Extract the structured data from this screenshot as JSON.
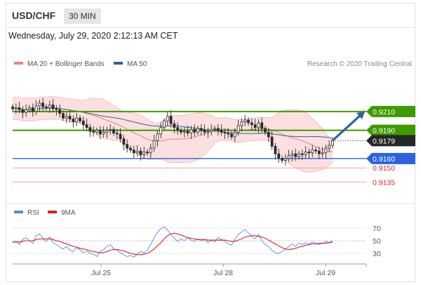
{
  "header": {
    "symbol": "USD/CHF",
    "timeframe": "30 MIN",
    "datetime": "Wednesday, July 29, 2020 2:12:13 AM CET"
  },
  "legend": {
    "items": [
      {
        "label": "MA 20 + Bollinger Bands",
        "color": "#f08080"
      },
      {
        "label": "MA 50",
        "color": "#2f5f9e"
      }
    ],
    "credit": "Research © 2020 Trading Central"
  },
  "chart_data": [
    {
      "type": "candlestick",
      "panel": "price",
      "x_ticks": [
        "Jul 25",
        "Jul 28",
        "Jul 29"
      ],
      "ylim": [
        0.9127,
        0.9245
      ],
      "close_series": [
        0.9213,
        0.9214,
        0.9212,
        0.9209,
        0.9212,
        0.9214,
        0.921,
        0.9216,
        0.9219,
        0.9215,
        0.9214,
        0.9217,
        0.9213,
        0.9212,
        0.9208,
        0.9203,
        0.9205,
        0.9202,
        0.9199,
        0.9203,
        0.92,
        0.9196,
        0.9193,
        0.9189,
        0.9188,
        0.919,
        0.9186,
        0.9188,
        0.919,
        0.9191,
        0.9187,
        0.9186,
        0.9181,
        0.9175,
        0.9171,
        0.9169,
        0.9166,
        0.9168,
        0.9164,
        0.9167,
        0.9166,
        0.9171,
        0.9179,
        0.9186,
        0.9193,
        0.92,
        0.9205,
        0.9197,
        0.9193,
        0.919,
        0.9188,
        0.9189,
        0.9187,
        0.9191,
        0.9188,
        0.9192,
        0.919,
        0.9188,
        0.9189,
        0.9191,
        0.9192,
        0.919,
        0.9188,
        0.9187,
        0.9186,
        0.9183,
        0.9188,
        0.9195,
        0.9199,
        0.9201,
        0.9198,
        0.9196,
        0.9193,
        0.9198,
        0.9192,
        0.9188,
        0.9183,
        0.9173,
        0.9165,
        0.916,
        0.9158,
        0.916,
        0.9163,
        0.9165,
        0.9162,
        0.9165,
        0.9164,
        0.9167,
        0.9166,
        0.9169,
        0.9168,
        0.9165,
        0.9166,
        0.9171,
        0.9174,
        0.9179
      ],
      "price_levels": [
        {
          "value": "0.9210",
          "style": "resistance",
          "color": "#3d9a00"
        },
        {
          "value": "0.9190",
          "style": "resistance",
          "color": "#3d9a00"
        },
        {
          "value": "0.9179",
          "style": "last-price",
          "color": "#333333"
        },
        {
          "value": "0.9160",
          "style": "support",
          "color": "#2a63e0"
        },
        {
          "value": "0.9150",
          "style": "support",
          "color": "#d4242b"
        },
        {
          "value": "0.9135",
          "style": "support",
          "color": "#d4242b"
        }
      ],
      "forecast_arrow": {
        "from": 0.9179,
        "to": 0.921,
        "color": "#2f5f9e"
      },
      "grid": false
    },
    {
      "type": "line",
      "panel": "rsi",
      "series": [
        {
          "name": "RSI",
          "color": "#5a86e0"
        },
        {
          "name": "9MA",
          "color": "#d4242b"
        }
      ],
      "y_ticks": [
        "70",
        "50",
        "30"
      ],
      "ylim": [
        20,
        80
      ],
      "rsi": [
        47,
        49,
        44,
        52,
        55,
        50,
        46,
        58,
        61,
        54,
        49,
        56,
        47,
        44,
        40,
        37,
        41,
        35,
        33,
        39,
        36,
        31,
        34,
        30,
        29,
        25,
        33,
        36,
        41,
        44,
        37,
        35,
        31,
        28,
        25,
        27,
        24,
        29,
        33,
        31,
        35,
        44,
        55,
        63,
        69,
        72,
        67,
        60,
        54,
        49,
        53,
        50,
        55,
        51,
        49,
        53,
        50,
        52,
        47,
        51,
        48,
        55,
        52,
        49,
        45,
        43,
        52,
        60,
        64,
        68,
        62,
        57,
        53,
        60,
        50,
        44,
        41,
        35,
        31,
        30,
        33,
        37,
        41,
        45,
        41,
        46,
        44,
        47,
        45,
        48,
        46,
        44,
        46,
        49,
        47,
        50
      ],
      "ma9": [
        48,
        48,
        48,
        49,
        50,
        50,
        50,
        52,
        53,
        53,
        53,
        53,
        52,
        50,
        49,
        47,
        45,
        43,
        41,
        40,
        38,
        37,
        36,
        34,
        33,
        32,
        31,
        31,
        33,
        35,
        36,
        36,
        35,
        34,
        32,
        30,
        29,
        28,
        28,
        29,
        30,
        33,
        37,
        42,
        47,
        53,
        58,
        61,
        62,
        61,
        59,
        57,
        55,
        54,
        53,
        52,
        52,
        52,
        51,
        51,
        51,
        51,
        51,
        51,
        50,
        49,
        49,
        51,
        53,
        56,
        57,
        58,
        58,
        57,
        56,
        54,
        51,
        48,
        45,
        42,
        39,
        37,
        36,
        37,
        38,
        40,
        41,
        43,
        44,
        45,
        45,
        46,
        46,
        46,
        47,
        48
      ]
    }
  ]
}
